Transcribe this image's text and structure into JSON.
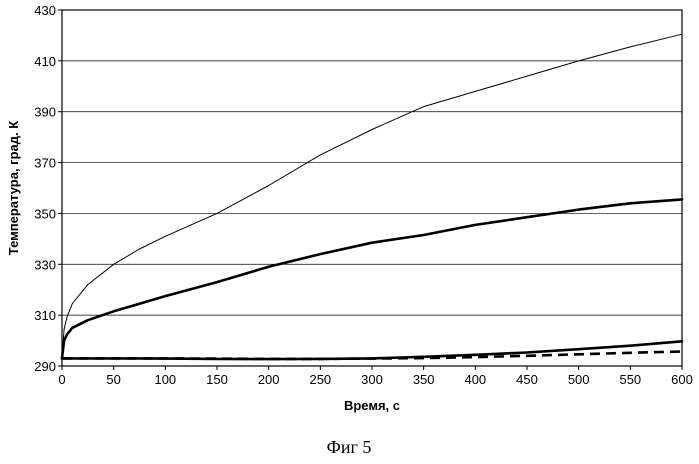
{
  "chart_data": {
    "type": "line",
    "caption": "Фиг 5",
    "xlabel": "Время, с",
    "ylabel": "Температура, град. К",
    "xlim": [
      0,
      600
    ],
    "ylim": [
      290,
      430
    ],
    "xticks": [
      0,
      50,
      100,
      150,
      200,
      250,
      300,
      350,
      400,
      450,
      500,
      550,
      600
    ],
    "yticks": [
      290,
      310,
      330,
      350,
      370,
      390,
      410,
      430
    ],
    "grid": "horizontal",
    "legend": "none",
    "x": [
      0,
      2,
      5,
      10,
      25,
      50,
      75,
      100,
      150,
      200,
      250,
      300,
      350,
      400,
      450,
      500,
      550,
      600
    ],
    "series": [
      {
        "style": "thin-solid",
        "color": "#000000",
        "values": [
          293,
          304.5,
          309.5,
          314.5,
          322,
          330,
          336,
          341,
          350,
          361,
          373,
          383,
          392,
          398,
          404,
          410,
          415.5,
          420.5
        ]
      },
      {
        "style": "thick-solid",
        "color": "#000000",
        "values": [
          293,
          300,
          302.5,
          305,
          308,
          311.5,
          314.5,
          317.5,
          323,
          329,
          334,
          338.5,
          341.5,
          345.5,
          348.5,
          351.5,
          354,
          355.5
        ]
      },
      {
        "style": "thick-solid",
        "color": "#000000",
        "values": [
          293,
          293,
          293,
          293,
          293,
          293,
          293,
          292.9,
          292.8,
          292.7,
          292.8,
          293,
          293.6,
          294.4,
          295.3,
          296.6,
          298,
          299.7
        ]
      },
      {
        "style": "thick-dashed",
        "color": "#000000",
        "values": [
          293,
          293,
          293,
          293,
          293,
          293,
          293,
          293,
          292.9,
          292.8,
          292.8,
          292.9,
          293.1,
          293.5,
          294,
          294.6,
          295.2,
          295.7
        ]
      }
    ]
  }
}
